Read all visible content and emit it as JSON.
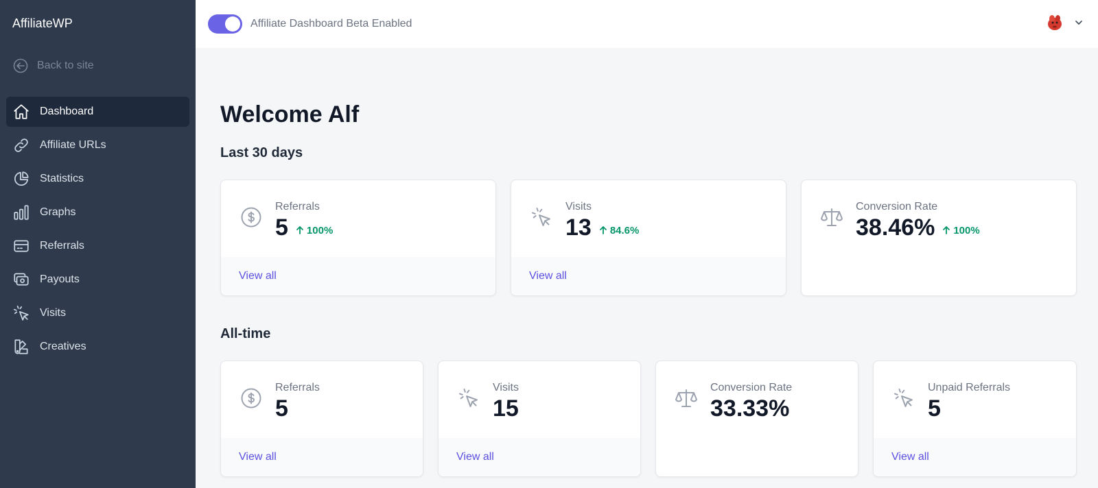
{
  "sidebar": {
    "brand": "AffiliateWP",
    "back_label": "Back to site",
    "items": [
      {
        "label": "Dashboard",
        "icon": "home-icon",
        "active": true
      },
      {
        "label": "Affiliate URLs",
        "icon": "link-icon"
      },
      {
        "label": "Statistics",
        "icon": "pie-chart-icon"
      },
      {
        "label": "Graphs",
        "icon": "bar-chart-icon"
      },
      {
        "label": "Referrals",
        "icon": "credit-card-icon"
      },
      {
        "label": "Payouts",
        "icon": "cash-icon"
      },
      {
        "label": "Visits",
        "icon": "cursor-click-icon"
      },
      {
        "label": "Creatives",
        "icon": "color-swatch-icon"
      }
    ]
  },
  "topbar": {
    "toggle_label": "Affiliate Dashboard Beta Enabled",
    "toggle_on": true,
    "avatar_icon": "alien-avatar-icon"
  },
  "main": {
    "title": "Welcome Alf",
    "last30": {
      "heading": "Last 30 days",
      "cards": [
        {
          "label": "Referrals",
          "value": "5",
          "delta": "100%",
          "link": "View all",
          "icon": "currency-dollar-icon"
        },
        {
          "label": "Visits",
          "value": "13",
          "delta": "84.6%",
          "link": "View all",
          "icon": "cursor-click-icon"
        },
        {
          "label": "Conversion Rate",
          "value": "38.46%",
          "delta": "100%",
          "icon": "scale-icon"
        }
      ]
    },
    "alltime": {
      "heading": "All-time",
      "cards": [
        {
          "label": "Referrals",
          "value": "5",
          "link": "View all",
          "icon": "currency-dollar-icon"
        },
        {
          "label": "Visits",
          "value": "15",
          "link": "View all",
          "icon": "cursor-click-icon"
        },
        {
          "label": "Conversion Rate",
          "value": "33.33%",
          "icon": "scale-icon"
        },
        {
          "label": "Unpaid Referrals",
          "value": "5",
          "link": "View all",
          "icon": "cursor-click-icon"
        }
      ]
    }
  },
  "colors": {
    "sidebar_bg": "#2f3b4d",
    "sidebar_active": "#1e293b",
    "accent": "#6b63e6",
    "link": "#5b50e0",
    "positive": "#059669"
  }
}
